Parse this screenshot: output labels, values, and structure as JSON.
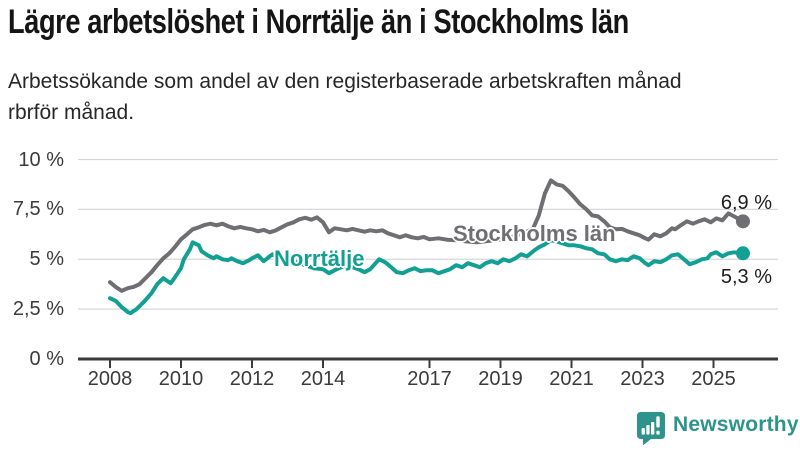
{
  "header": {
    "title": "Lägre arbetslöshet i Norrtälje än i Stockholms län",
    "subtitle_line1": "Arbetssökande som andel av den registerbaserade arbetskraften månad",
    "subtitle_line2": "för månad."
  },
  "chart_data": {
    "type": "line",
    "title": "Lägre arbetslöshet i Norrtälje än i Stockholms län",
    "xlabel": "",
    "ylabel": "Arbetssökande som andel av den registerbaserade arbetskraften (%)",
    "unit": "%",
    "grid": "horizontal",
    "legend": "inline-labels",
    "ylim": [
      0,
      10
    ],
    "y_tick_values": [
      0,
      2.5,
      5,
      7.5,
      10
    ],
    "y_tick_labels": [
      "0 %",
      "2,5 %",
      "5 %",
      "7,5 %",
      "10 %"
    ],
    "x_tick_values": [
      2008,
      2010,
      2012,
      2014,
      2017,
      2019,
      2021,
      2023,
      2025
    ],
    "x_tick_labels": [
      "2008",
      "2010",
      "2012",
      "2014",
      "2017",
      "2019",
      "2021",
      "2023",
      "2025"
    ],
    "axis_color": "#3b3b3e",
    "grid_color": "#d8d8d8",
    "series": [
      {
        "name": "Stockholms län",
        "color": "#6e6e73",
        "end_label": "6,9 %",
        "end_value": 6.9,
        "points": [
          [
            2008.0,
            3.85
          ],
          [
            2008.17,
            3.6
          ],
          [
            2008.33,
            3.42
          ],
          [
            2008.5,
            3.55
          ],
          [
            2008.67,
            3.62
          ],
          [
            2008.83,
            3.75
          ],
          [
            2009.0,
            4.05
          ],
          [
            2009.17,
            4.35
          ],
          [
            2009.33,
            4.7
          ],
          [
            2009.5,
            5.05
          ],
          [
            2009.67,
            5.3
          ],
          [
            2009.83,
            5.62
          ],
          [
            2010.0,
            6.0
          ],
          [
            2010.17,
            6.25
          ],
          [
            2010.33,
            6.5
          ],
          [
            2010.5,
            6.6
          ],
          [
            2010.67,
            6.72
          ],
          [
            2010.83,
            6.78
          ],
          [
            2011.0,
            6.7
          ],
          [
            2011.17,
            6.78
          ],
          [
            2011.33,
            6.65
          ],
          [
            2011.5,
            6.55
          ],
          [
            2011.67,
            6.62
          ],
          [
            2011.83,
            6.55
          ],
          [
            2012.0,
            6.5
          ],
          [
            2012.17,
            6.4
          ],
          [
            2012.33,
            6.47
          ],
          [
            2012.5,
            6.35
          ],
          [
            2012.67,
            6.45
          ],
          [
            2012.83,
            6.6
          ],
          [
            2013.0,
            6.75
          ],
          [
            2013.17,
            6.85
          ],
          [
            2013.33,
            7.0
          ],
          [
            2013.5,
            7.08
          ],
          [
            2013.67,
            6.98
          ],
          [
            2013.83,
            7.1
          ],
          [
            2014.0,
            6.85
          ],
          [
            2014.17,
            6.35
          ],
          [
            2014.33,
            6.55
          ],
          [
            2014.5,
            6.5
          ],
          [
            2014.67,
            6.45
          ],
          [
            2014.83,
            6.52
          ],
          [
            2015.0,
            6.45
          ],
          [
            2015.17,
            6.38
          ],
          [
            2015.33,
            6.45
          ],
          [
            2015.5,
            6.4
          ],
          [
            2015.67,
            6.45
          ],
          [
            2015.83,
            6.3
          ],
          [
            2016.0,
            6.2
          ],
          [
            2016.17,
            6.1
          ],
          [
            2016.33,
            6.2
          ],
          [
            2016.5,
            6.1
          ],
          [
            2016.67,
            6.05
          ],
          [
            2016.83,
            6.12
          ],
          [
            2017.0,
            6.0
          ],
          [
            2017.25,
            6.05
          ],
          [
            2017.5,
            5.98
          ],
          [
            2017.75,
            5.95
          ],
          [
            2018.0,
            5.9
          ],
          [
            2018.33,
            5.85
          ],
          [
            2018.67,
            5.92
          ],
          [
            2019.0,
            6.0
          ],
          [
            2019.33,
            6.12
          ],
          [
            2019.67,
            6.3
          ],
          [
            2019.92,
            6.55
          ],
          [
            2020.08,
            7.2
          ],
          [
            2020.25,
            8.3
          ],
          [
            2020.42,
            8.95
          ],
          [
            2020.58,
            8.75
          ],
          [
            2020.75,
            8.68
          ],
          [
            2020.92,
            8.4
          ],
          [
            2021.08,
            8.1
          ],
          [
            2021.25,
            7.75
          ],
          [
            2021.42,
            7.5
          ],
          [
            2021.58,
            7.2
          ],
          [
            2021.75,
            7.15
          ],
          [
            2021.92,
            6.9
          ],
          [
            2022.08,
            6.6
          ],
          [
            2022.25,
            6.5
          ],
          [
            2022.42,
            6.52
          ],
          [
            2022.58,
            6.4
          ],
          [
            2022.75,
            6.3
          ],
          [
            2022.92,
            6.2
          ],
          [
            2023.08,
            6.05
          ],
          [
            2023.17,
            5.98
          ],
          [
            2023.33,
            6.25
          ],
          [
            2023.5,
            6.15
          ],
          [
            2023.67,
            6.3
          ],
          [
            2023.83,
            6.55
          ],
          [
            2023.92,
            6.5
          ],
          [
            2024.08,
            6.7
          ],
          [
            2024.25,
            6.9
          ],
          [
            2024.42,
            6.78
          ],
          [
            2024.58,
            6.9
          ],
          [
            2024.75,
            7.0
          ],
          [
            2024.92,
            6.85
          ],
          [
            2025.08,
            7.05
          ],
          [
            2025.25,
            6.95
          ],
          [
            2025.42,
            7.3
          ],
          [
            2025.58,
            7.15
          ],
          [
            2025.83,
            6.9
          ]
        ]
      },
      {
        "name": "Norrtälje",
        "color": "#11a093",
        "end_label": "5,3 %",
        "end_value": 5.3,
        "points": [
          [
            2008.0,
            3.05
          ],
          [
            2008.17,
            2.9
          ],
          [
            2008.33,
            2.6
          ],
          [
            2008.5,
            2.35
          ],
          [
            2008.58,
            2.3
          ],
          [
            2008.75,
            2.5
          ],
          [
            2008.92,
            2.8
          ],
          [
            2009.0,
            2.95
          ],
          [
            2009.17,
            3.3
          ],
          [
            2009.33,
            3.75
          ],
          [
            2009.5,
            4.05
          ],
          [
            2009.58,
            3.95
          ],
          [
            2009.71,
            3.8
          ],
          [
            2009.83,
            4.1
          ],
          [
            2010.0,
            4.55
          ],
          [
            2010.08,
            5.0
          ],
          [
            2010.25,
            5.5
          ],
          [
            2010.33,
            5.85
          ],
          [
            2010.5,
            5.7
          ],
          [
            2010.58,
            5.4
          ],
          [
            2010.75,
            5.2
          ],
          [
            2010.92,
            5.05
          ],
          [
            2011.0,
            5.15
          ],
          [
            2011.17,
            5.0
          ],
          [
            2011.33,
            4.95
          ],
          [
            2011.42,
            5.05
          ],
          [
            2011.58,
            4.9
          ],
          [
            2011.75,
            4.8
          ],
          [
            2011.92,
            4.95
          ],
          [
            2012.0,
            5.05
          ],
          [
            2012.17,
            5.2
          ],
          [
            2012.33,
            4.9
          ],
          [
            2012.5,
            5.15
          ],
          [
            2012.58,
            5.25
          ],
          [
            2012.75,
            5.0
          ],
          [
            2013.0,
            5.05
          ],
          [
            2013.25,
            4.85
          ],
          [
            2013.5,
            4.7
          ],
          [
            2013.75,
            4.55
          ],
          [
            2014.0,
            4.5
          ],
          [
            2014.17,
            4.3
          ],
          [
            2014.33,
            4.45
          ],
          [
            2014.58,
            4.65
          ],
          [
            2014.83,
            4.6
          ],
          [
            2015.0,
            4.5
          ],
          [
            2015.17,
            4.35
          ],
          [
            2015.33,
            4.5
          ],
          [
            2015.58,
            5.0
          ],
          [
            2015.75,
            4.85
          ],
          [
            2015.92,
            4.6
          ],
          [
            2016.08,
            4.35
          ],
          [
            2016.25,
            4.3
          ],
          [
            2016.42,
            4.45
          ],
          [
            2016.58,
            4.55
          ],
          [
            2016.75,
            4.4
          ],
          [
            2016.92,
            4.45
          ],
          [
            2017.08,
            4.45
          ],
          [
            2017.25,
            4.3
          ],
          [
            2017.42,
            4.4
          ],
          [
            2017.58,
            4.5
          ],
          [
            2017.75,
            4.7
          ],
          [
            2017.92,
            4.6
          ],
          [
            2018.08,
            4.8
          ],
          [
            2018.25,
            4.7
          ],
          [
            2018.42,
            4.6
          ],
          [
            2018.58,
            4.8
          ],
          [
            2018.75,
            4.9
          ],
          [
            2018.92,
            4.8
          ],
          [
            2019.08,
            5.0
          ],
          [
            2019.25,
            4.9
          ],
          [
            2019.42,
            5.05
          ],
          [
            2019.58,
            5.25
          ],
          [
            2019.75,
            5.15
          ],
          [
            2019.92,
            5.4
          ],
          [
            2020.08,
            5.6
          ],
          [
            2020.25,
            5.75
          ],
          [
            2020.42,
            5.95
          ],
          [
            2020.58,
            5.9
          ],
          [
            2020.75,
            5.8
          ],
          [
            2020.92,
            5.7
          ],
          [
            2021.08,
            5.7
          ],
          [
            2021.25,
            5.65
          ],
          [
            2021.42,
            5.55
          ],
          [
            2021.58,
            5.5
          ],
          [
            2021.75,
            5.3
          ],
          [
            2021.92,
            5.25
          ],
          [
            2022.08,
            5.0
          ],
          [
            2022.25,
            4.9
          ],
          [
            2022.42,
            5.0
          ],
          [
            2022.58,
            4.95
          ],
          [
            2022.75,
            5.15
          ],
          [
            2022.92,
            5.05
          ],
          [
            2023.08,
            4.8
          ],
          [
            2023.17,
            4.7
          ],
          [
            2023.33,
            4.9
          ],
          [
            2023.5,
            4.85
          ],
          [
            2023.67,
            5.0
          ],
          [
            2023.83,
            5.2
          ],
          [
            2024.0,
            5.25
          ],
          [
            2024.17,
            5.0
          ],
          [
            2024.33,
            4.75
          ],
          [
            2024.5,
            4.85
          ],
          [
            2024.67,
            5.0
          ],
          [
            2024.83,
            5.05
          ],
          [
            2024.92,
            5.25
          ],
          [
            2025.08,
            5.35
          ],
          [
            2025.25,
            5.15
          ],
          [
            2025.42,
            5.3
          ],
          [
            2025.58,
            5.35
          ],
          [
            2025.83,
            5.3
          ]
        ]
      }
    ]
  },
  "branding": {
    "logo_text": "Newsworthy",
    "logo_color": "#2e948b",
    "logo_icon": "bar-chart-speech-bubble-icon"
  }
}
